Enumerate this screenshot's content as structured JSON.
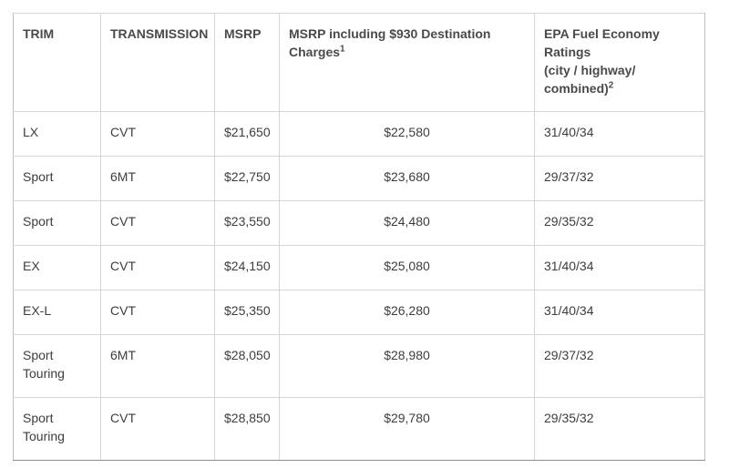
{
  "headers": {
    "trim": "TRIM",
    "transmission": "TRANSMISSION",
    "msrp": "MSRP",
    "msrp_dest": "MSRP including $930 Destination Charges",
    "msrp_dest_sup": "1",
    "epa_line1": "EPA Fuel Economy Ratings",
    "epa_line2": "(city / highway/ combined)",
    "epa_sup": "2"
  },
  "rows": [
    {
      "trim": "LX",
      "transmission": "CVT",
      "msrp": "$21,650",
      "msrp_dest": "$22,580",
      "epa": "31/40/34"
    },
    {
      "trim": "Sport",
      "transmission": "6MT",
      "msrp": "$22,750",
      "msrp_dest": "$23,680",
      "epa": "29/37/32"
    },
    {
      "trim": "Sport",
      "transmission": "CVT",
      "msrp": "$23,550",
      "msrp_dest": "$24,480",
      "epa": "29/35/32"
    },
    {
      "trim": "EX",
      "transmission": "CVT",
      "msrp": "$24,150",
      "msrp_dest": "$25,080",
      "epa": "31/40/34"
    },
    {
      "trim": "EX-L",
      "transmission": "CVT",
      "msrp": "$25,350",
      "msrp_dest": "$26,280",
      "epa": "31/40/34"
    },
    {
      "trim": "Sport Touring",
      "transmission": "6MT",
      "msrp": "$28,050",
      "msrp_dest": "$28,980",
      "epa": "29/37/32"
    },
    {
      "trim": "Sport Touring",
      "transmission": "CVT",
      "msrp": "$28,850",
      "msrp_dest": "$29,780",
      "epa": "29/35/32"
    }
  ]
}
